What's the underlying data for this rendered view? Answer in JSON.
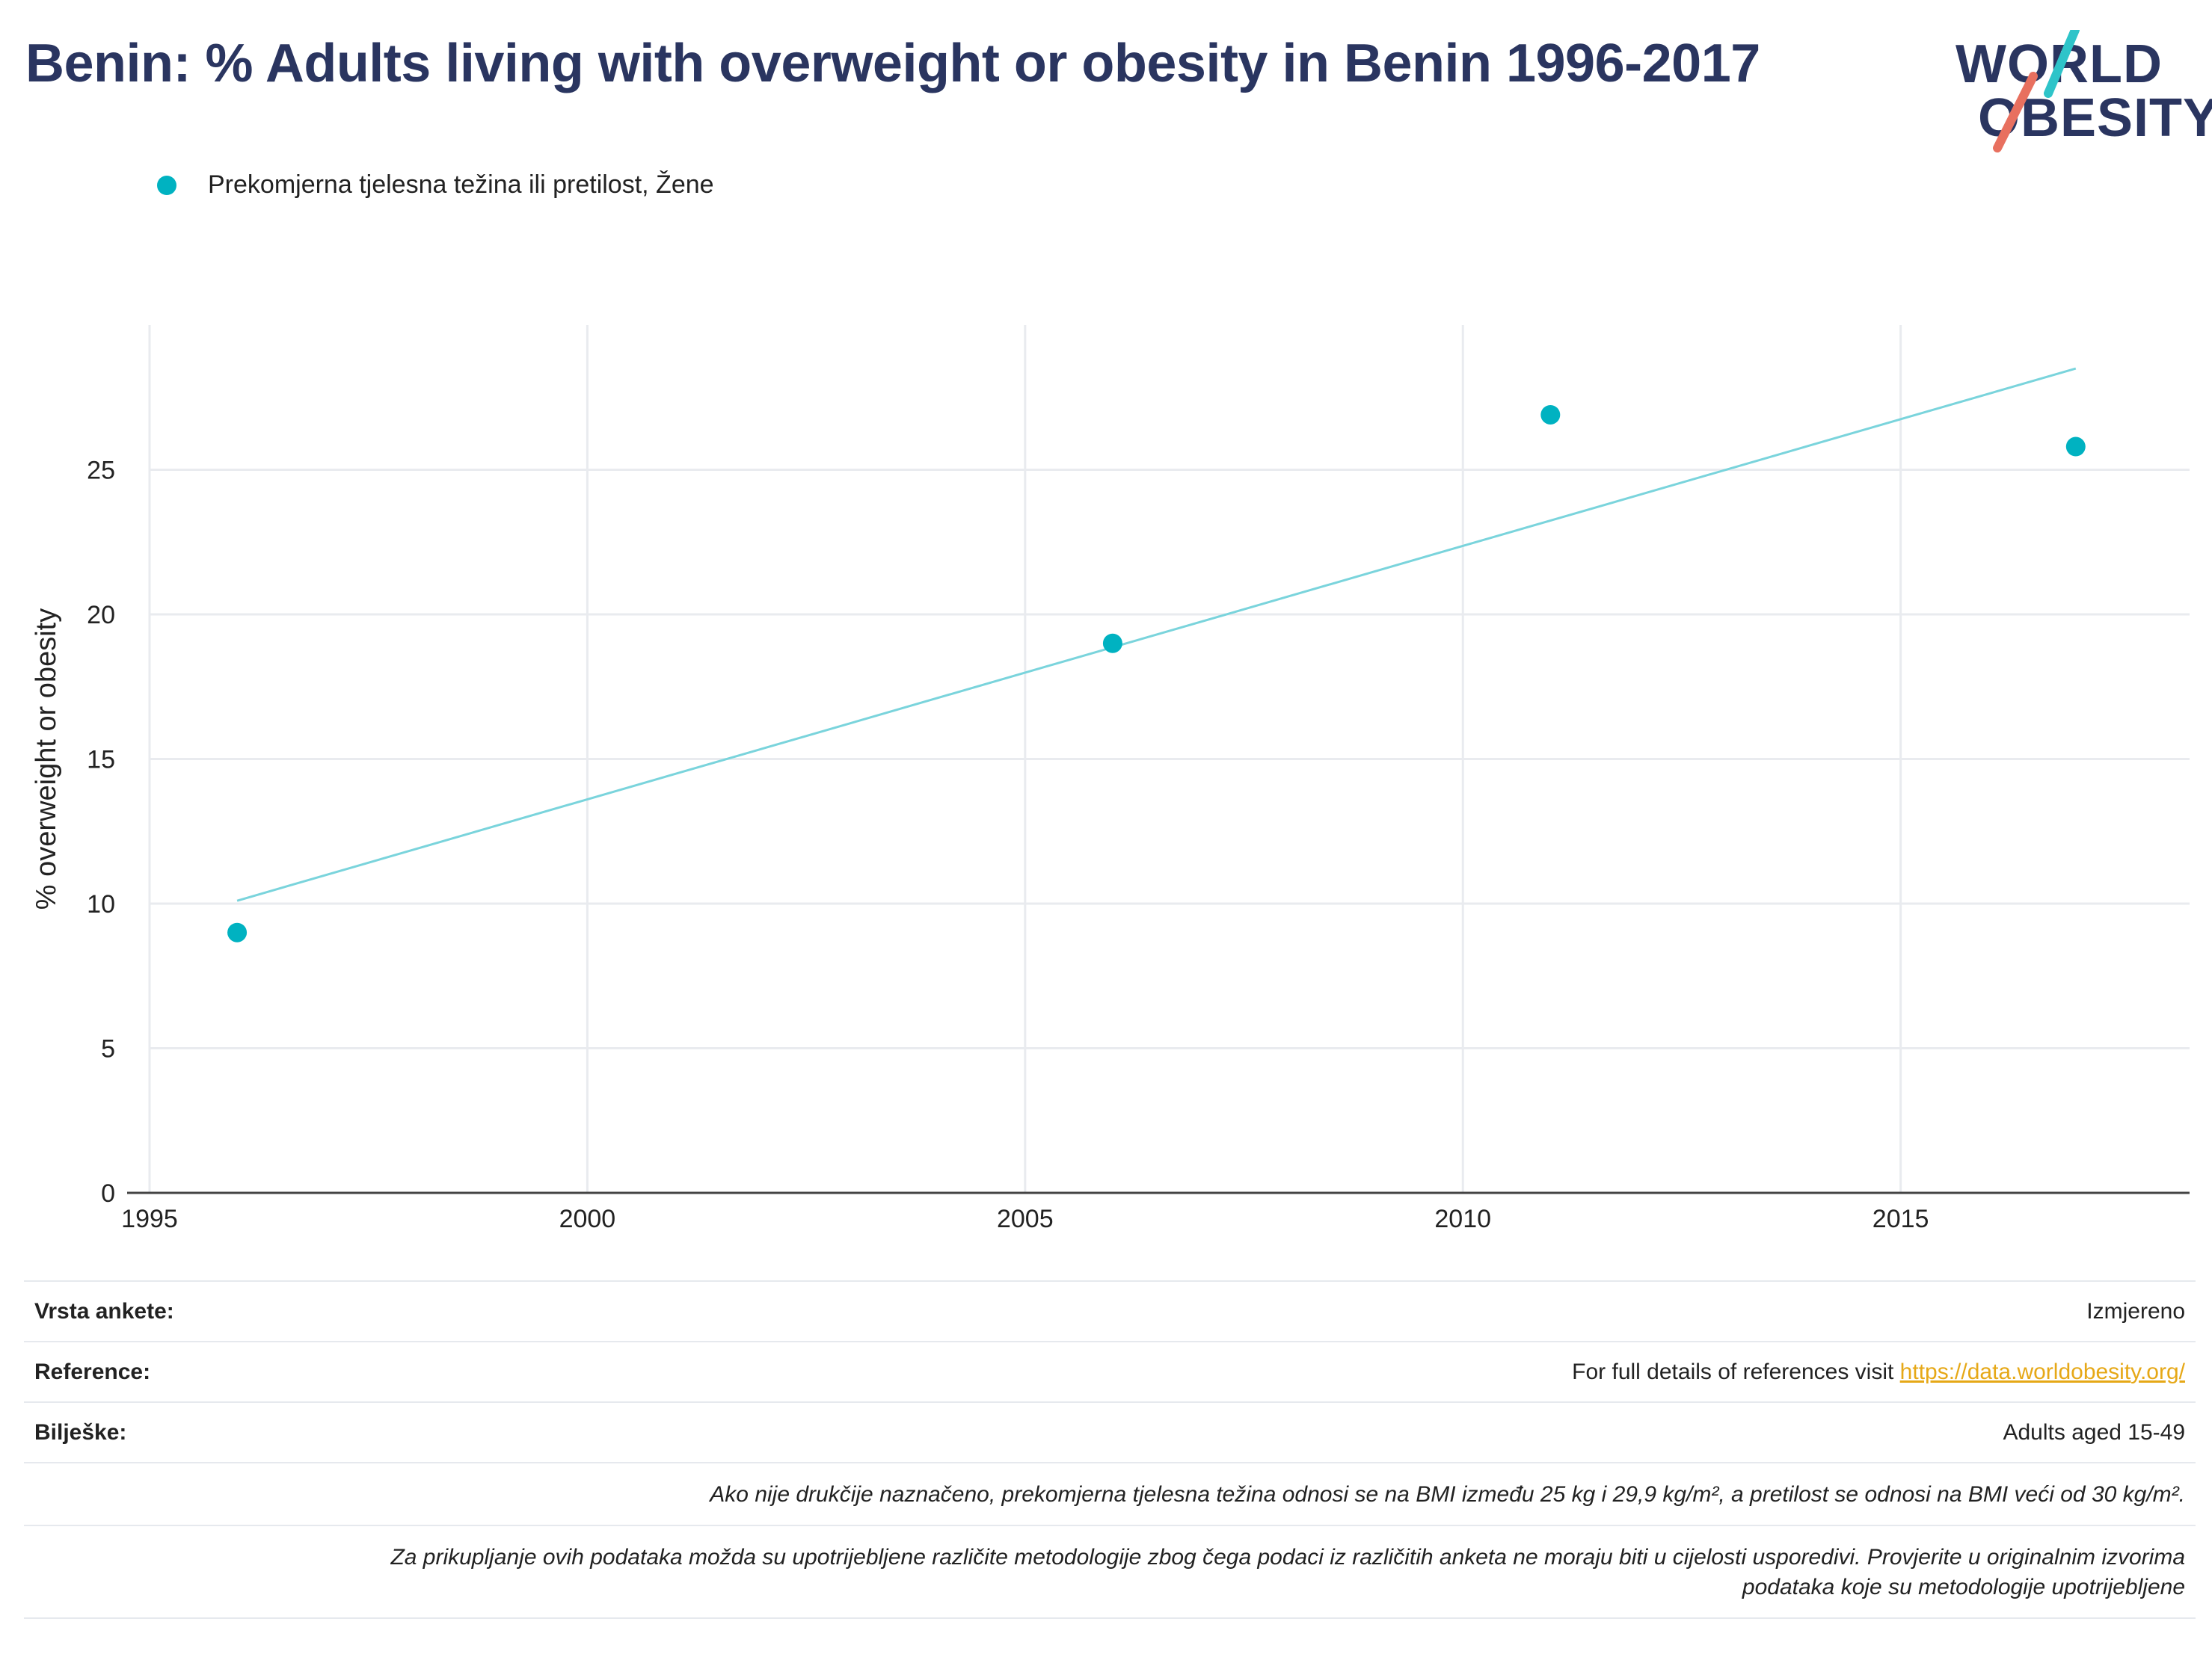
{
  "title": "Benin: % Adults living with overweight or obesity in Benin 1996-2017",
  "logo": {
    "line1": "WORLD",
    "line2": "OBESITY",
    "accent_teal": "#2ec4c9",
    "accent_coral": "#e8705f"
  },
  "colors": {
    "series": "#00b2c1",
    "trend": "#7ad4dc",
    "grid": "#e9ebef",
    "axis": "#444444",
    "title": "#2a3560"
  },
  "chart_data": {
    "type": "scatter",
    "title": "Benin: % Adults living with overweight or obesity in Benin 1996-2017",
    "xlabel": "",
    "ylabel": "% overweight or obesity",
    "xlim": [
      1995,
      2018.3
    ],
    "ylim": [
      0,
      30
    ],
    "x_ticks": [
      1995,
      2000,
      2005,
      2010,
      2015
    ],
    "y_ticks": [
      0,
      5,
      10,
      15,
      20,
      25
    ],
    "grid": true,
    "legend_position": "top-left",
    "series": [
      {
        "name": "Prekomjerna tjelesna težina ili pretilost, Žene",
        "x": [
          1996,
          2006,
          2011,
          2017
        ],
        "y": [
          9.0,
          19.0,
          26.9,
          25.8
        ]
      }
    ],
    "trendline": {
      "x": [
        1996,
        2017
      ],
      "y": [
        10.1,
        28.5
      ]
    }
  },
  "info": {
    "survey_type": {
      "label": "Vrsta ankete:",
      "value": "Izmjereno"
    },
    "references": {
      "label": "Reference:",
      "text": "For full details of references visit ",
      "link": "https://data.worldobesity.org/"
    },
    "notes": {
      "label": "Bilješke:",
      "value": "Adults aged 15-49"
    },
    "note1": "Ako nije drukčije naznačeno, prekomjerna tjelesna težina odnosi se na BMI između 25 kg i 29,9 kg/m², a pretilost se odnosi na BMI veći od 30 kg/m².",
    "note2_line1": "Za prikupljanje ovih podataka možda su upotrijebljene različite metodologije zbog čega podaci iz različitih anketa ne moraju biti u cijelosti usporedivi. Provjerite u originalnim izvorima",
    "note2_line2": "podataka koje su metodologije upotrijebljene"
  }
}
